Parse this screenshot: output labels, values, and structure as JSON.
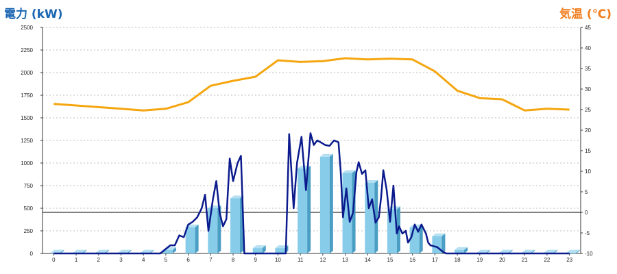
{
  "chart_data": {
    "type": "bar+line",
    "left_axis_label": "電力 (kW)",
    "right_axis_label": "気温 (℃)",
    "left_axis_ticks": [
      "0",
      "250",
      "500",
      "750",
      "1000",
      "1250",
      "1500",
      "1750",
      "2000",
      "2250",
      "2500"
    ],
    "right_axis_ticks": [
      "-10",
      "-5",
      "0",
      "5",
      "10",
      "15",
      "20",
      "25",
      "30",
      "35",
      "40",
      "45"
    ],
    "categories": [
      "0",
      "1",
      "2",
      "3",
      "4",
      "5",
      "6",
      "7",
      "8",
      "9",
      "10",
      "11",
      "12",
      "13",
      "14",
      "15",
      "16",
      "17",
      "18",
      "19",
      "20",
      "21",
      "22",
      "23"
    ],
    "ylim_left": [
      0,
      2500
    ],
    "ylim_right": [
      -10,
      45
    ],
    "grid": true,
    "colors": {
      "left_label": "#1a66b3",
      "right_label": "#f07d1e",
      "bar_front": "#87cce8",
      "bar_side": "#4a9ec4",
      "bar_top": "#b5e0f2",
      "power_line": "#0b1a8c",
      "temperature_line": "#f5a60f",
      "zero_line": "#000000",
      "grid": "#bbbbbb"
    },
    "series": [
      {
        "type": "bar",
        "axis": "left",
        "values": [
          10,
          10,
          10,
          10,
          10,
          40,
          290,
          500,
          610,
          60,
          60,
          940,
          1070,
          890,
          780,
          490,
          290,
          190,
          40,
          10,
          10,
          10,
          10,
          10
        ]
      },
      {
        "type": "line",
        "axis": "left",
        "x": [
          0,
          1,
          2,
          3,
          4,
          4.75,
          5,
          5.2,
          5.4,
          5.6,
          5.8,
          6,
          6.2,
          6.4,
          6.6,
          6.75,
          6.9,
          7.1,
          7.25,
          7.4,
          7.55,
          7.7,
          7.85,
          8.0,
          8.2,
          8.35,
          8.5,
          8.65,
          8.75,
          9,
          9.5,
          10,
          10.35,
          10.5,
          10.7,
          10.85,
          11.05,
          11.25,
          11.45,
          11.6,
          11.75,
          11.9,
          12.1,
          12.3,
          12.5,
          12.7,
          12.8,
          12.9,
          13.05,
          13.2,
          13.35,
          13.5,
          13.6,
          13.75,
          13.9,
          14.05,
          14.2,
          14.35,
          14.5,
          14.6,
          14.7,
          14.85,
          15.0,
          15.15,
          15.3,
          15.4,
          15.55,
          15.7,
          15.8,
          15.95,
          16.1,
          16.25,
          16.4,
          16.6,
          16.7,
          16.8,
          16.95,
          17.1,
          17.2,
          17.35,
          17.5,
          17.65,
          17.85,
          18,
          19,
          20,
          21,
          22,
          23
        ],
        "values": [
          0,
          0,
          0,
          0,
          0,
          0,
          50,
          90,
          90,
          200,
          180,
          320,
          350,
          400,
          500,
          650,
          250,
          600,
          800,
          450,
          300,
          380,
          1050,
          800,
          1000,
          1080,
          0,
          0,
          0,
          0,
          0,
          0,
          0,
          1320,
          500,
          1000,
          1290,
          700,
          1330,
          1200,
          1250,
          1230,
          1200,
          1190,
          1250,
          1230,
          900,
          400,
          720,
          350,
          450,
          900,
          1010,
          880,
          920,
          500,
          600,
          340,
          400,
          620,
          920,
          700,
          350,
          750,
          220,
          300,
          220,
          250,
          120,
          180,
          320,
          240,
          320,
          220,
          120,
          90,
          80,
          70,
          50,
          20,
          0,
          0,
          0,
          0,
          0,
          0,
          0,
          0,
          0
        ]
      },
      {
        "type": "line",
        "axis": "right",
        "values": [
          26.4,
          26.0,
          25.6,
          25.2,
          24.8,
          25.2,
          26.8,
          30.8,
          32.0,
          33.0,
          37.0,
          36.6,
          36.8,
          37.5,
          37.2,
          37.4,
          37.2,
          34.3,
          29.6,
          27.8,
          27.5,
          24.8,
          25.2,
          25.0
        ]
      }
    ]
  }
}
